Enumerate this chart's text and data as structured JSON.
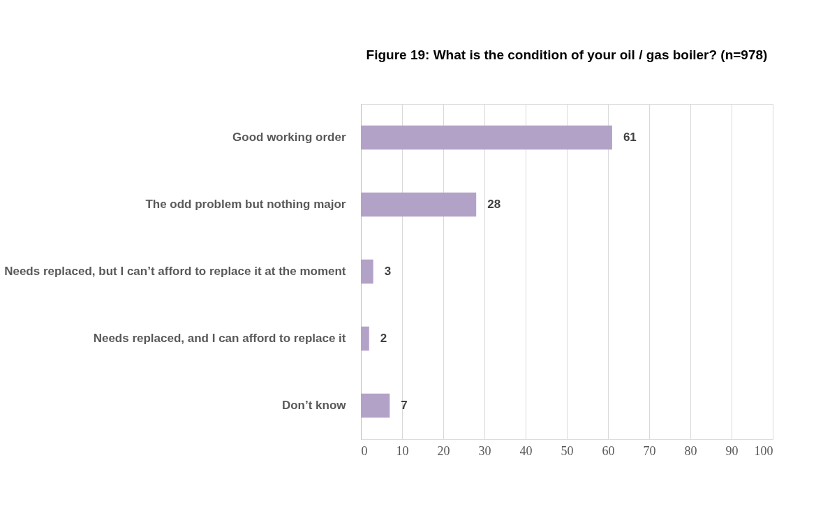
{
  "chart_data": {
    "type": "bar",
    "orientation": "horizontal",
    "title": "Figure 19: What is the condition of your oil / gas boiler? (n=978)",
    "categories": [
      "Good working order",
      "The odd problem but nothing major",
      "Needs replaced, but I can’t afford to replace it at the moment",
      "Needs replaced, and I can afford to replace it",
      "Don’t know"
    ],
    "values": [
      61,
      28,
      3,
      2,
      7
    ],
    "color": "#b3a2c7",
    "xlim": [
      0,
      100
    ],
    "xticks": [
      0,
      10,
      20,
      30,
      40,
      50,
      60,
      70,
      80,
      90,
      100
    ],
    "grid": "x",
    "data_labels": true
  }
}
